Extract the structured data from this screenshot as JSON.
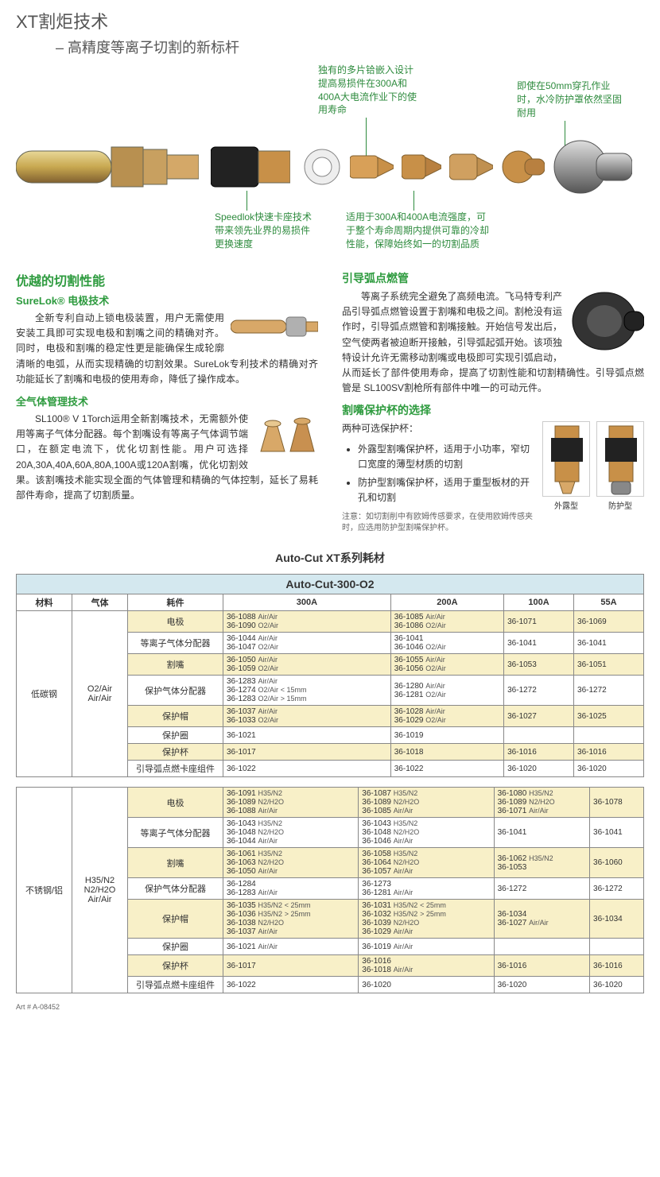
{
  "header": {
    "title": "XT割炬技术",
    "subtitle": "高精度等离子切割的新标杆"
  },
  "callouts": {
    "c1": "独有的多片铪嵌入设计\n提高易损件在300A和\n400A大电流作业下的使\n用寿命",
    "c2": "即使在50mm穿孔作业\n时，水冷防护罩依然坚固\n耐用",
    "c3": "Speedlok快速卡座技术\n带来领先业界的易损件\n更换速度",
    "c4": "适用于300A和400A电流强度，可\n于整个寿命周期内提供可靠的冷却\n性能，保障始终如一的切割品质"
  },
  "left": {
    "h1": "优越的切割性能",
    "h2": "SureLok® 电极技术",
    "p1": "全新专利自动上锁电极装置，用户无需使用安装工具即可实现电极和割嘴之间的精确对齐。同时，电极和割嘴的稳定性更是能确保生成轮廓清晰的电弧，从而实现精确的切割效果。SureLok专利技术的精确对齐功能延长了割嘴和电极的使用寿命，降低了操作成本。",
    "h3": "全气体管理技术",
    "p2": "SL100® V 1Torch运用全新割嘴技术，无需额外使用等离子气体分配器。每个割嘴设有等离子气体调节端口，在额定电流下，优化切割性能。用户可选择20A,30A,40A,60A,80A,100A或120A割嘴，优化切割效果。该割嘴技术能实现全面的气体管理和精确的气体控制，延长了易耗部件寿命，提高了切割质量。"
  },
  "right": {
    "h1": "引导弧点燃管",
    "p1": "等离子系统完全避免了高频电流。飞马特专利产品引导弧点燃管设置于割嘴和电极之间。割枪没有运作时，引导弧点燃管和割嘴接触。开始信号发出后，空气使两者被迫断开接触，引导弧起弧开始。该项独特设计允许无需移动割嘴或电极即可实现引弧启动，从而延长了部件使用寿命，提高了切割性能和切割精确性。引导弧点燃管是 SL100SV割枪所有部件中唯一的可动元件。",
    "h2": "割嘴保护杯的选择",
    "p2": "两种可选保护杯：",
    "b1": "外露型割嘴保护杯，适用于小功率，窄切口宽度的薄型材质的切割",
    "b2": "防护型割嘴保护杯，适用于重型板材的开孔和切割",
    "note": "注意：如切割削中有欧姆传感要求，在使用欧姆传感夹时，应选用防护型割嘴保护杯。",
    "cup1": "外露型",
    "cup2": "防护型"
  },
  "consumables_title": "Auto-Cut XT系列耗材",
  "table1": {
    "title": "Auto-Cut-300-O2",
    "headers": [
      "材料",
      "气体",
      "耗件",
      "300A",
      "200A",
      "100A",
      "55A"
    ],
    "material": "低碳钢",
    "gas": "O2/Air\nAir/Air",
    "rows": [
      {
        "part": "电极",
        "y": true,
        "v": [
          "36-1088 Air/Air\n36-1090 O2/Air",
          "36-1085 Air/Air\n36-1086 O2/Air",
          "36-1071",
          "36-1069"
        ]
      },
      {
        "part": "等离子气体分配器",
        "y": false,
        "v": [
          "36-1044  Air/Air\n36-1047  O2/Air",
          "36-1041\n36-1046  O2/Air",
          "36-1041",
          "36-1041"
        ]
      },
      {
        "part": "割嘴",
        "y": true,
        "v": [
          "36-1050 Air/Air\n36-1059 O2/Air",
          "36-1055 Air/Air\n36-1056 O2/Air",
          "36-1053",
          "36-1051"
        ]
      },
      {
        "part": "保护气体分配器",
        "y": false,
        "v": [
          "36-1283 Air/Air\n36-1274  O2/Air < 15mm\n36-1283 O2/Air > 15mm",
          "36-1280  Air/Air\n36-1281  O2/Air",
          "36-1272",
          "36-1272"
        ]
      },
      {
        "part": "保护帽",
        "y": true,
        "v": [
          "36-1037 Air/Air\n36-1033 O2/Air",
          "36-1028  Air/Air\n36-1029 O2/Air",
          "36-1027",
          "36-1025"
        ]
      },
      {
        "part": "保护圈",
        "y": false,
        "v": [
          "36-1021",
          "36-1019",
          "",
          ""
        ]
      },
      {
        "part": "保护杯",
        "y": true,
        "v": [
          "36-1017",
          "36-1018",
          "36-1016",
          "36-1016"
        ]
      },
      {
        "part": "引导弧点燃卡座组件",
        "y": false,
        "v": [
          "36-1022",
          "36-1022",
          "36-1020",
          "36-1020"
        ]
      }
    ]
  },
  "table2": {
    "material": "不锈钢/铝",
    "gas": "H35/N2\nN2/H2O\nAir/Air",
    "rows": [
      {
        "part": "电极",
        "y": true,
        "v": [
          "36-1091 H35/N2\n36-1089 N2/H2O\n36-1088 Air/Air",
          "36-1087 H35/N2\n36-1089 N2/H2O\n36-1085 Air/Air",
          "36-1080 H35/N2\n36-1089 N2/H2O\n36-1071 Air/Air",
          "36-1078"
        ]
      },
      {
        "part": "等离子气体分配器",
        "y": false,
        "v": [
          "36-1043 H35/N2\n36-1048 N2/H2O\n36-1044 Air/Air",
          "36-1043 H35/N2\n36-1048 N2/H2O\n36-1046 Air/Air",
          "36-1041",
          "36-1041"
        ]
      },
      {
        "part": "割嘴",
        "y": true,
        "v": [
          "36-1061 H35/N2\n36-1063 N2/H2O\n36-1050 Air/Air",
          "36-1058 H35/N2\n36-1064 N2/H2O\n36-1057 Air/Air",
          "36-1062 H35/N2\n36-1053",
          "36-1060"
        ]
      },
      {
        "part": "保护气体分配器",
        "y": false,
        "v": [
          "36-1284\n36-1283 Air/Air",
          "36-1273\n36-1281 Air/Air",
          "36-1272",
          "36-1272"
        ]
      },
      {
        "part": "保护帽",
        "y": true,
        "v": [
          "36-1035 H35/N2 < 25mm\n36-1036 H35/N2 > 25mm\n36-1038 N2/H2O\n36-1037 Air/Air",
          "36-1031 H35/N2 < 25mm\n36-1032 H35/N2 > 25mm\n36-1039 N2/H2O\n36-1029 Air/Air",
          "36-1034\n36-1027 Air/Air",
          "36-1034"
        ]
      },
      {
        "part": "保护圈",
        "y": false,
        "v": [
          "36-1021 Air/Air",
          "36-1019 Air/Air",
          "",
          ""
        ]
      },
      {
        "part": "保护杯",
        "y": true,
        "v": [
          "36-1017",
          "36-1016\n36-1018 Air/Air",
          "36-1016",
          "36-1016"
        ]
      },
      {
        "part": "引导弧点燃卡座组件",
        "y": false,
        "v": [
          "36-1022",
          "36-1020",
          "36-1020",
          "36-1020"
        ]
      }
    ]
  },
  "art_num": "Art # A-08452"
}
